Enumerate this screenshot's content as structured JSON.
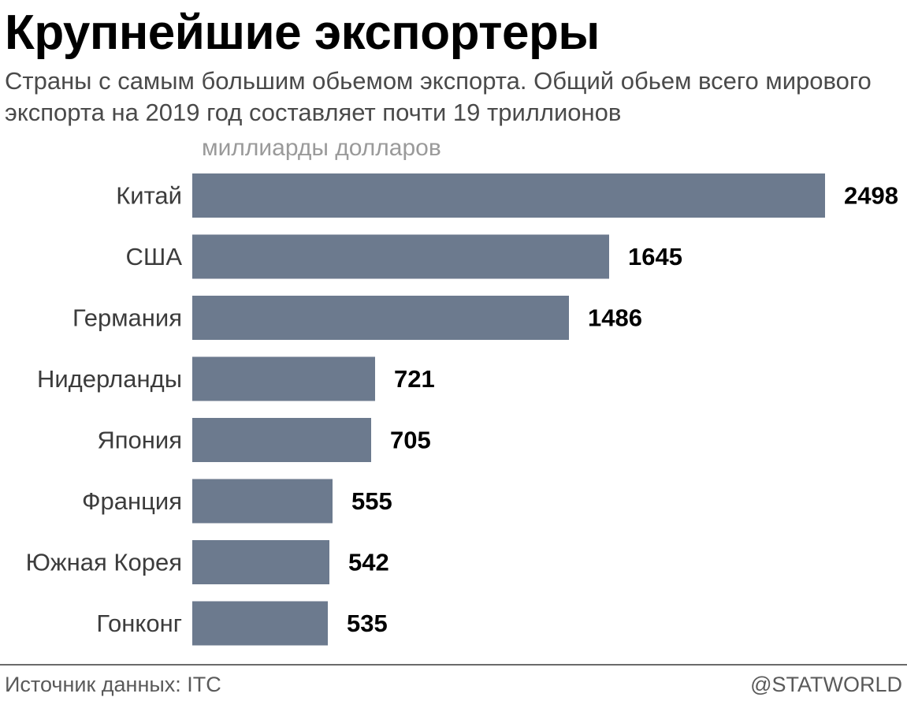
{
  "header": {
    "title": "Крупнейшие экспортеры",
    "subtitle": "Страны с самым большим обьемом экспорта. Общий обьем всего мирового экспорта на 2019 год составляет почти 19 триллионов"
  },
  "footer": {
    "source": "Источник данных: ITC",
    "credit": "@STATWORLD"
  },
  "colors": {
    "bar": "#6c7a8e",
    "rule": "#6a6a6a"
  },
  "chart_data": {
    "type": "bar",
    "orientation": "horizontal",
    "unit_label": "миллиарды долларов",
    "categories": [
      "Китай",
      "США",
      "Германия",
      "Нидерланды",
      "Япония",
      "Франция",
      "Южная Корея",
      "Гонконг"
    ],
    "values": [
      2498,
      1645,
      1486,
      721,
      705,
      555,
      542,
      535
    ],
    "xlim": [
      0,
      2498
    ],
    "grid": false,
    "legend": "none",
    "data_labels": true
  }
}
